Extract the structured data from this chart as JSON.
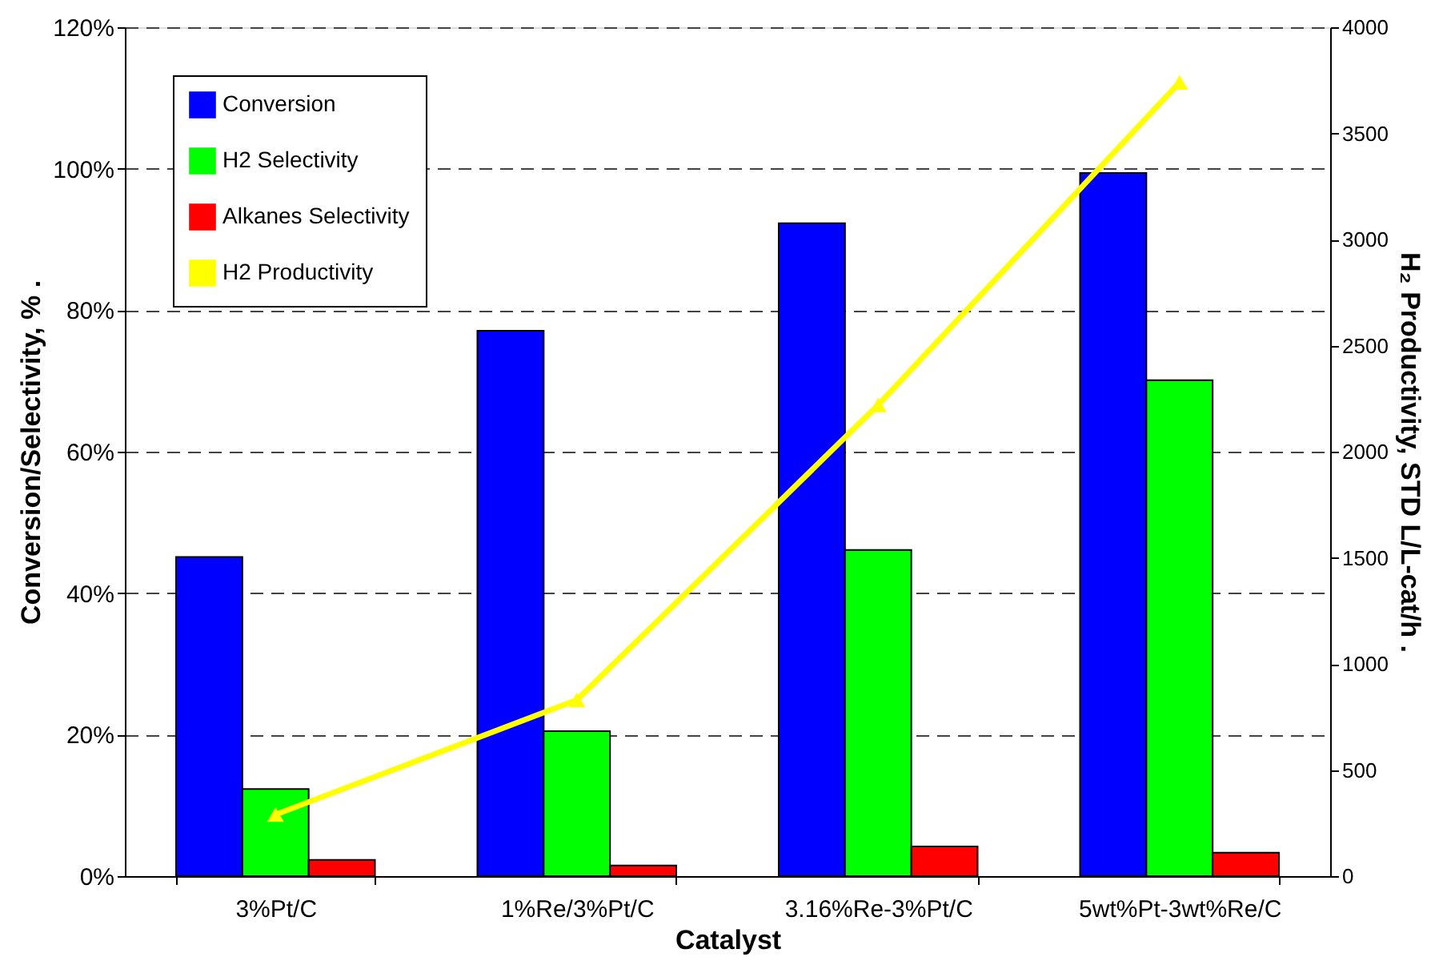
{
  "chart_data": {
    "type": "bar",
    "xlabel": "Catalyst",
    "ylabel": "Conversion/Selectivity, %  .",
    "y2label": "H₂ Productivity, STD L/L-cat/h  .",
    "categories": [
      "3%Pt/C",
      "1%Re/3%Pt/C",
      "3.16%Re-3%Pt/C",
      "5wt%Pt-3wt%Re/C"
    ],
    "series": [
      {
        "name": "Conversion",
        "color": "#0000ff",
        "values": [
          45.1,
          77.1,
          92.3,
          99.4
        ]
      },
      {
        "name": "H2 Selectivity",
        "color": "#00ff00",
        "values": [
          12.3,
          20.5,
          46.1,
          70.1
        ]
      },
      {
        "name": "Alkanes Selectivity",
        "color": "#ff0000",
        "values": [
          2.3,
          1.5,
          4.2,
          3.3
        ]
      },
      {
        "name": "H2 Productivity",
        "color": "#ffff00",
        "type": "line",
        "axis": "y2",
        "marker": "triangle",
        "values": [
          290,
          830,
          2220,
          3740
        ]
      }
    ],
    "ylim": [
      0,
      120
    ],
    "yticks": [
      {
        "value": 0,
        "label": "0%"
      },
      {
        "value": 20,
        "label": "20%"
      },
      {
        "value": 40,
        "label": "40%"
      },
      {
        "value": 60,
        "label": "60%"
      },
      {
        "value": 80,
        "label": "80%"
      },
      {
        "value": 100,
        "label": "100%"
      },
      {
        "value": 120,
        "label": "120%"
      }
    ],
    "y2lim": [
      0,
      4000
    ],
    "y2ticks": [
      0,
      500,
      1000,
      1500,
      2000,
      2500,
      3000,
      3500,
      4000
    ],
    "grid": "y",
    "legend": "top left"
  }
}
